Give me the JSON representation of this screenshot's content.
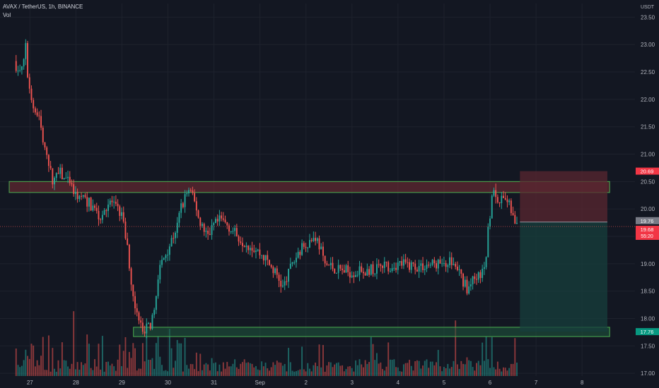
{
  "header": {
    "symbol": "AVAX / TetherUS, 1h, BINANCE",
    "indicator": "Vol"
  },
  "price_axis": {
    "currency": "USDT"
  },
  "colors": {
    "background": "#131722",
    "grid": "#1e222d",
    "up": "#26a69a",
    "down": "#ef5350",
    "zone_border": "#4caf50",
    "resistance_fill": "#7a2e35",
    "support_fill": "#1f5a3e",
    "stop_fill": "#5a2730",
    "target_fill": "#173f3c"
  },
  "chart_data": {
    "type": "candlestick",
    "title": "AVAX / TetherUS, 1h, BINANCE",
    "xlabel": "",
    "ylabel": "",
    "ylim": [
      16.95,
      23.75
    ],
    "y_ticks": [
      "17.00",
      "17.50",
      "18.00",
      "18.50",
      "19.00",
      "19.50",
      "20.00",
      "20.50",
      "21.00",
      "21.50",
      "22.00",
      "22.50",
      "23.00",
      "23.50"
    ],
    "x_ticks": [
      {
        "label": "27",
        "t": 0.3
      },
      {
        "label": "28",
        "t": 1.3
      },
      {
        "label": "29",
        "t": 2.3
      },
      {
        "label": "30",
        "t": 3.3
      },
      {
        "label": "31",
        "t": 4.3
      },
      {
        "label": "Sep",
        "t": 5.3
      },
      {
        "label": "2",
        "t": 6.3
      },
      {
        "label": "3",
        "t": 7.3
      },
      {
        "label": "4",
        "t": 8.3
      },
      {
        "label": "5",
        "t": 9.3
      },
      {
        "label": "6",
        "t": 10.3
      },
      {
        "label": "7",
        "t": 11.3
      },
      {
        "label": "8",
        "t": 12.3
      }
    ],
    "price_path": [
      [
        0.0,
        22.7
      ],
      [
        0.12,
        22.5
      ],
      [
        0.2,
        22.6
      ],
      [
        0.25,
        23.0
      ],
      [
        0.3,
        22.2
      ],
      [
        0.4,
        21.9
      ],
      [
        0.55,
        21.6
      ],
      [
        0.7,
        20.9
      ],
      [
        0.85,
        20.5
      ],
      [
        1.0,
        20.65
      ],
      [
        1.15,
        20.5
      ],
      [
        1.3,
        20.3
      ],
      [
        1.5,
        20.2
      ],
      [
        1.7,
        20.05
      ],
      [
        1.85,
        19.85
      ],
      [
        2.0,
        20.05
      ],
      [
        2.1,
        20.15
      ],
      [
        2.2,
        20.0
      ],
      [
        2.35,
        19.9
      ],
      [
        2.48,
        19.2
      ],
      [
        2.58,
        18.4
      ],
      [
        2.7,
        17.95
      ],
      [
        2.85,
        17.8
      ],
      [
        3.0,
        17.95
      ],
      [
        3.1,
        18.6
      ],
      [
        3.2,
        19.0
      ],
      [
        3.35,
        19.3
      ],
      [
        3.5,
        19.6
      ],
      [
        3.65,
        20.1
      ],
      [
        3.8,
        20.35
      ],
      [
        3.95,
        20.05
      ],
      [
        4.05,
        19.7
      ],
      [
        4.2,
        19.5
      ],
      [
        4.35,
        19.7
      ],
      [
        4.5,
        19.8
      ],
      [
        4.65,
        19.7
      ],
      [
        4.8,
        19.55
      ],
      [
        5.0,
        19.4
      ],
      [
        5.2,
        19.3
      ],
      [
        5.45,
        19.1
      ],
      [
        5.7,
        18.8
      ],
      [
        5.85,
        18.55
      ],
      [
        6.0,
        18.9
      ],
      [
        6.2,
        19.25
      ],
      [
        6.4,
        19.4
      ],
      [
        6.55,
        19.5
      ],
      [
        6.65,
        19.3
      ],
      [
        6.75,
        19.0
      ],
      [
        7.0,
        18.9
      ],
      [
        7.3,
        18.85
      ],
      [
        7.6,
        18.85
      ],
      [
        8.0,
        18.95
      ],
      [
        8.4,
        19.0
      ],
      [
        8.8,
        18.95
      ],
      [
        9.2,
        19.0
      ],
      [
        9.5,
        19.05
      ],
      [
        9.75,
        18.7
      ],
      [
        9.85,
        18.55
      ],
      [
        10.0,
        18.7
      ],
      [
        10.15,
        18.8
      ],
      [
        10.25,
        19.1
      ],
      [
        10.32,
        19.8
      ],
      [
        10.4,
        20.3
      ],
      [
        10.5,
        20.1
      ],
      [
        10.6,
        20.15
      ],
      [
        10.75,
        20.2
      ],
      [
        10.85,
        19.75
      ],
      [
        10.9,
        19.68
      ]
    ],
    "candle_interval_days": 0.0417,
    "last_price": "19.68",
    "countdown": "55:20",
    "zones": [
      {
        "name": "resistance",
        "from": 20.3,
        "to": 20.5,
        "t_start": -0.15,
        "t_end": 12.9
      },
      {
        "name": "support",
        "from": 17.67,
        "to": 17.84,
        "t_start": 2.55,
        "t_end": 12.9
      }
    ],
    "position": {
      "t_start": 10.95,
      "t_end": 12.85,
      "entry": 19.76,
      "stop": 20.69,
      "target": 17.76
    },
    "price_labels": [
      {
        "value": "20.69",
        "kind": "stop"
      },
      {
        "value": "19.76",
        "kind": "entry"
      },
      {
        "value": "19.68",
        "kind": "last"
      },
      {
        "value": "17.76",
        "kind": "target"
      }
    ],
    "grid": true,
    "volume_pane": true
  }
}
